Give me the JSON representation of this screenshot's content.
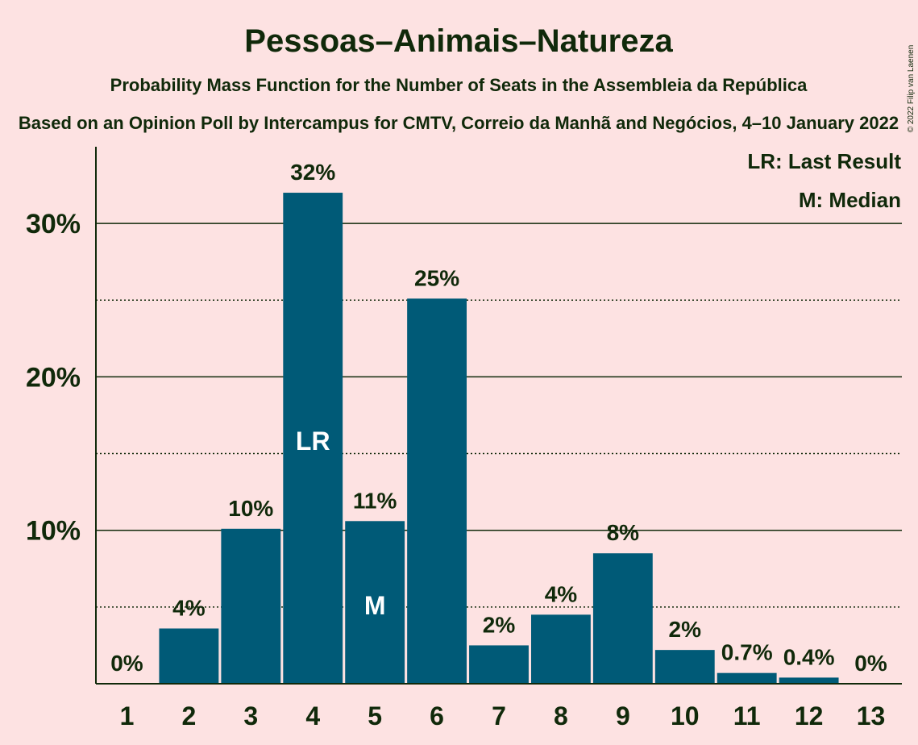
{
  "chart_data": {
    "type": "bar",
    "title": "Pessoas–Animais–Natureza",
    "subtitle_line1": "Probability Mass Function for the Number of Seats in the Assembleia da República",
    "subtitle_line2": "Based on an Opinion Poll by Intercampus for CMTV, Correio da Manhã and Negócios, 4–10 January 2022",
    "copyright": "© 2022 Filip van Laenen",
    "categories": [
      "1",
      "2",
      "3",
      "4",
      "5",
      "6",
      "7",
      "8",
      "9",
      "10",
      "11",
      "12",
      "13"
    ],
    "values": [
      0,
      3.6,
      10.1,
      32.0,
      10.6,
      25.1,
      2.5,
      4.5,
      8.5,
      2.2,
      0.7,
      0.4,
      0
    ],
    "data_labels": [
      "0%",
      "4%",
      "10%",
      "32%",
      "11%",
      "25%",
      "2%",
      "4%",
      "8%",
      "2%",
      "0.7%",
      "0.4%",
      "0%"
    ],
    "ylim": [
      0,
      35
    ],
    "yticks": [
      {
        "value": 10,
        "label": "10%"
      },
      {
        "value": 20,
        "label": "20%"
      },
      {
        "value": 30,
        "label": "30%"
      }
    ],
    "minor_gridlines": [
      5,
      15,
      25
    ],
    "bar_color": "#005a77",
    "background": "#fde2e2",
    "markers": [
      {
        "category": "4",
        "label": "LR"
      },
      {
        "category": "5",
        "label": "M"
      }
    ],
    "legend": {
      "position": "top-right",
      "entries": [
        "LR: Last Result",
        "M: Median"
      ]
    }
  }
}
